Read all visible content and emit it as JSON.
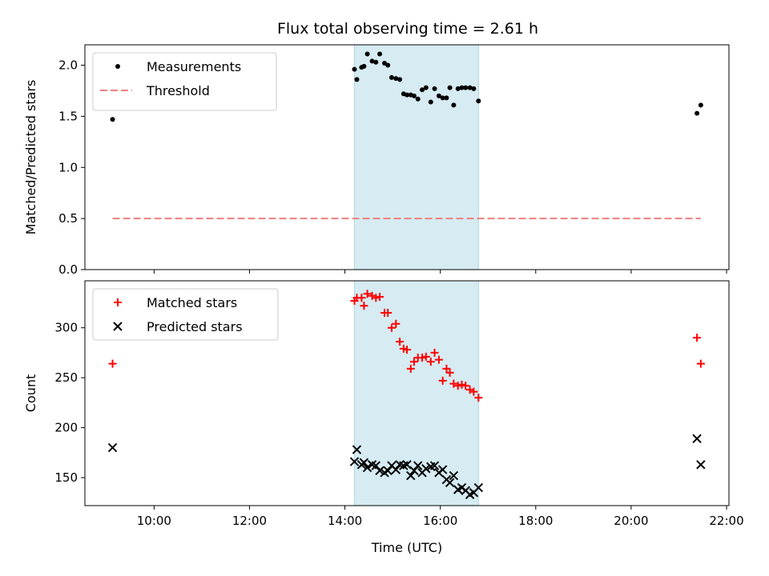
{
  "title": "Flux total observing time = 2.61 h",
  "chart_data": [
    {
      "type": "scatter",
      "panel": "top",
      "ylabel": "Matched/Predicted stars",
      "xlabel": "",
      "xlim": [
        8.55,
        22.05
      ],
      "ylim": [
        0,
        2.2
      ],
      "yticks": [
        0.0,
        0.5,
        1.0,
        1.5,
        2.0
      ],
      "ytick_labels": [
        "0.0",
        "0.5",
        "1.0",
        "1.5",
        "2.0"
      ],
      "grid": false,
      "legend_position": "top-left",
      "observing_window": [
        14.2,
        16.8
      ],
      "series": [
        {
          "name": "Measurements",
          "marker": "dot",
          "color": "#000000",
          "x": [
            9.13,
            14.2,
            14.25,
            14.35,
            14.4,
            14.47,
            14.57,
            14.65,
            14.73,
            14.83,
            14.9,
            14.98,
            15.07,
            15.15,
            15.23,
            15.3,
            15.38,
            15.45,
            15.53,
            15.62,
            15.7,
            15.8,
            15.88,
            15.97,
            16.05,
            16.13,
            16.2,
            16.28,
            16.37,
            16.45,
            16.53,
            16.62,
            16.7,
            16.8,
            21.38,
            21.46
          ],
          "y": [
            1.47,
            1.96,
            1.86,
            1.98,
            1.99,
            2.11,
            2.04,
            2.03,
            2.11,
            2.02,
            2.0,
            1.88,
            1.87,
            1.86,
            1.72,
            1.71,
            1.71,
            1.7,
            1.67,
            1.76,
            1.78,
            1.64,
            1.77,
            1.7,
            1.68,
            1.68,
            1.78,
            1.61,
            1.77,
            1.78,
            1.78,
            1.78,
            1.77,
            1.65,
            1.53,
            1.61
          ]
        },
        {
          "name": "Threshold",
          "marker": "dashed-line",
          "color": "#f08080",
          "x": [
            9.13,
            21.46
          ],
          "y": [
            0.5,
            0.5
          ]
        }
      ]
    },
    {
      "type": "scatter",
      "panel": "bottom",
      "xlabel": "Time (UTC)",
      "ylabel": "Count",
      "xlim": [
        8.55,
        22.05
      ],
      "ylim": [
        122,
        347
      ],
      "xticks": [
        10,
        12,
        14,
        16,
        18,
        20,
        22
      ],
      "xtick_labels": [
        "10:00",
        "12:00",
        "14:00",
        "16:00",
        "18:00",
        "20:00",
        "22:00"
      ],
      "yticks": [
        150,
        200,
        250,
        300
      ],
      "ytick_labels": [
        "150",
        "200",
        "250",
        "300"
      ],
      "grid": false,
      "legend_position": "top-left",
      "observing_window": [
        14.2,
        16.8
      ],
      "series": [
        {
          "name": "Matched stars",
          "marker": "plus",
          "color": "#ff0000",
          "x": [
            9.13,
            14.2,
            14.25,
            14.35,
            14.4,
            14.47,
            14.57,
            14.65,
            14.73,
            14.83,
            14.9,
            14.98,
            15.07,
            15.15,
            15.23,
            15.3,
            15.38,
            15.45,
            15.53,
            15.62,
            15.7,
            15.8,
            15.88,
            15.97,
            16.05,
            16.13,
            16.2,
            16.28,
            16.37,
            16.45,
            16.53,
            16.62,
            16.7,
            16.8,
            21.38,
            21.46
          ],
          "y": [
            264,
            327,
            330,
            330,
            322,
            334,
            332,
            330,
            331,
            315,
            315,
            300,
            304,
            286,
            279,
            278,
            259,
            266,
            270,
            270,
            271,
            266,
            275,
            268,
            247,
            259,
            255,
            244,
            242,
            243,
            242,
            238,
            236,
            230,
            290,
            264
          ]
        },
        {
          "name": "Predicted stars",
          "marker": "x",
          "color": "#000000",
          "x": [
            9.13,
            14.2,
            14.25,
            14.35,
            14.4,
            14.47,
            14.57,
            14.65,
            14.73,
            14.83,
            14.9,
            14.98,
            15.07,
            15.15,
            15.23,
            15.3,
            15.38,
            15.45,
            15.53,
            15.62,
            15.7,
            15.8,
            15.88,
            15.97,
            16.05,
            16.13,
            16.2,
            16.28,
            16.37,
            16.45,
            16.53,
            16.62,
            16.7,
            16.8,
            21.38,
            21.46
          ],
          "y": [
            180,
            166,
            178,
            163,
            165,
            160,
            163,
            162,
            157,
            155,
            157,
            162,
            158,
            163,
            162,
            163,
            152,
            157,
            162,
            155,
            159,
            161,
            162,
            155,
            158,
            148,
            145,
            152,
            138,
            140,
            137,
            133,
            135,
            140,
            189,
            163
          ]
        }
      ]
    }
  ]
}
